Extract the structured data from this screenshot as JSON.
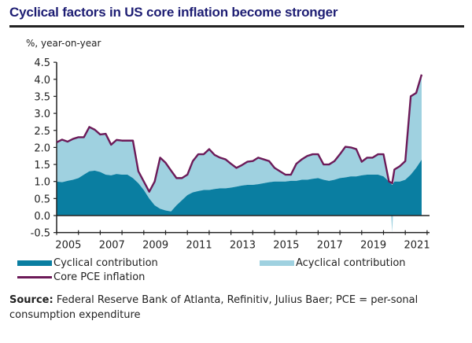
{
  "chart_data": {
    "type": "area",
    "title": "Cyclical factors in US core inflation become stronger",
    "ylabel": "%, year-on-year",
    "xlabel": "",
    "ylim": [
      -0.5,
      4.5
    ],
    "xlim": [
      2005,
      2022
    ],
    "yticks": [
      "-0.5",
      "0.0",
      "0.5",
      "1.0",
      "1.5",
      "2.0",
      "2.5",
      "3.0",
      "3.5",
      "4.0",
      "4.5"
    ],
    "ytick_values": [
      -0.5,
      0.0,
      0.5,
      1.0,
      1.5,
      2.0,
      2.5,
      3.0,
      3.5,
      4.0,
      4.5
    ],
    "xticks": [
      "2005",
      "2007",
      "2009",
      "2011",
      "2013",
      "2015",
      "2017",
      "2019",
      "2021"
    ],
    "grid": false,
    "legend_position": "bottom",
    "x": [
      2005.0,
      2005.25,
      2005.5,
      2005.75,
      2006.0,
      2006.25,
      2006.5,
      2006.75,
      2007.0,
      2007.25,
      2007.5,
      2007.75,
      2008.0,
      2008.25,
      2008.5,
      2008.75,
      2009.0,
      2009.25,
      2009.5,
      2009.75,
      2010.0,
      2010.25,
      2010.5,
      2010.75,
      2011.0,
      2011.25,
      2011.5,
      2011.75,
      2012.0,
      2012.25,
      2012.5,
      2012.75,
      2013.0,
      2013.25,
      2013.5,
      2013.75,
      2014.0,
      2014.25,
      2014.5,
      2014.75,
      2015.0,
      2015.25,
      2015.5,
      2015.75,
      2016.0,
      2016.25,
      2016.5,
      2016.75,
      2017.0,
      2017.25,
      2017.5,
      2017.75,
      2018.0,
      2018.25,
      2018.5,
      2018.75,
      2019.0,
      2019.25,
      2019.5,
      2019.75,
      2020.0,
      2020.25,
      2020.4,
      2020.5,
      2020.75,
      2021.0,
      2021.25,
      2021.5,
      2021.75
    ],
    "series": [
      {
        "name": "Cyclical contribution",
        "type": "area",
        "color": "#0a7ea1",
        "values": [
          1.0,
          0.98,
          1.02,
          1.05,
          1.1,
          1.2,
          1.3,
          1.32,
          1.28,
          1.2,
          1.18,
          1.22,
          1.2,
          1.2,
          1.1,
          0.95,
          0.75,
          0.5,
          0.3,
          0.2,
          0.15,
          0.12,
          0.3,
          0.45,
          0.6,
          0.68,
          0.72,
          0.75,
          0.75,
          0.78,
          0.8,
          0.8,
          0.82,
          0.85,
          0.88,
          0.9,
          0.9,
          0.92,
          0.95,
          0.98,
          1.0,
          1.0,
          1.0,
          1.02,
          1.02,
          1.05,
          1.05,
          1.08,
          1.1,
          1.05,
          1.02,
          1.05,
          1.1,
          1.12,
          1.15,
          1.15,
          1.18,
          1.2,
          1.2,
          1.2,
          1.15,
          1.0,
          0.9,
          1.0,
          1.0,
          1.05,
          1.2,
          1.4,
          1.64
        ]
      },
      {
        "name": "Acyclical contribution",
        "type": "area",
        "color": "#9fd1e0",
        "values": [
          1.15,
          1.25,
          1.15,
          1.2,
          1.2,
          1.1,
          1.3,
          1.2,
          1.1,
          1.2,
          0.9,
          1.0,
          1.0,
          1.0,
          1.1,
          0.35,
          0.25,
          0.2,
          0.7,
          1.5,
          1.4,
          1.2,
          0.8,
          0.65,
          0.6,
          0.92,
          1.08,
          1.05,
          1.2,
          1.0,
          0.9,
          0.85,
          0.7,
          0.55,
          0.6,
          0.68,
          0.7,
          0.78,
          0.7,
          0.62,
          0.4,
          0.3,
          0.2,
          0.18,
          0.5,
          0.6,
          0.7,
          0.72,
          0.7,
          0.45,
          0.48,
          0.55,
          0.7,
          0.9,
          0.85,
          0.8,
          0.4,
          0.5,
          0.5,
          0.6,
          0.65,
          0.0,
          -0.5,
          0.35,
          0.45,
          0.55,
          2.3,
          2.2,
          2.5
        ]
      },
      {
        "name": "Core PCE inflation",
        "type": "line",
        "color": "#6c1a58",
        "values": [
          2.15,
          2.23,
          2.17,
          2.25,
          2.3,
          2.3,
          2.6,
          2.52,
          2.38,
          2.4,
          2.08,
          2.22,
          2.2,
          2.2,
          2.2,
          1.3,
          1.0,
          0.7,
          1.0,
          1.7,
          1.55,
          1.32,
          1.1,
          1.1,
          1.2,
          1.6,
          1.8,
          1.8,
          1.95,
          1.78,
          1.7,
          1.65,
          1.52,
          1.4,
          1.48,
          1.58,
          1.6,
          1.7,
          1.65,
          1.6,
          1.4,
          1.3,
          1.2,
          1.2,
          1.52,
          1.65,
          1.75,
          1.8,
          1.8,
          1.5,
          1.5,
          1.6,
          1.8,
          2.02,
          2.0,
          1.95,
          1.58,
          1.7,
          1.7,
          1.8,
          1.8,
          1.0,
          0.95,
          1.35,
          1.45,
          1.6,
          3.5,
          3.6,
          4.14
        ]
      }
    ]
  },
  "header": {
    "title": "Cyclical factors in US core inflation become stronger",
    "unit_label": "%, year-on-year"
  },
  "legend": {
    "items": [
      {
        "label": "Cyclical contribution",
        "color": "#0a7ea1"
      },
      {
        "label": "Acyclical contribution",
        "color": "#9fd1e0"
      },
      {
        "label": "Core PCE inflation",
        "color": "#6c1a58"
      }
    ]
  },
  "footer": {
    "source_label": "Source:",
    "source_text": " Federal Reserve Bank of Atlanta, Refinitiv, Julius Baer; PCE = per-sonal consumption expenditure"
  }
}
